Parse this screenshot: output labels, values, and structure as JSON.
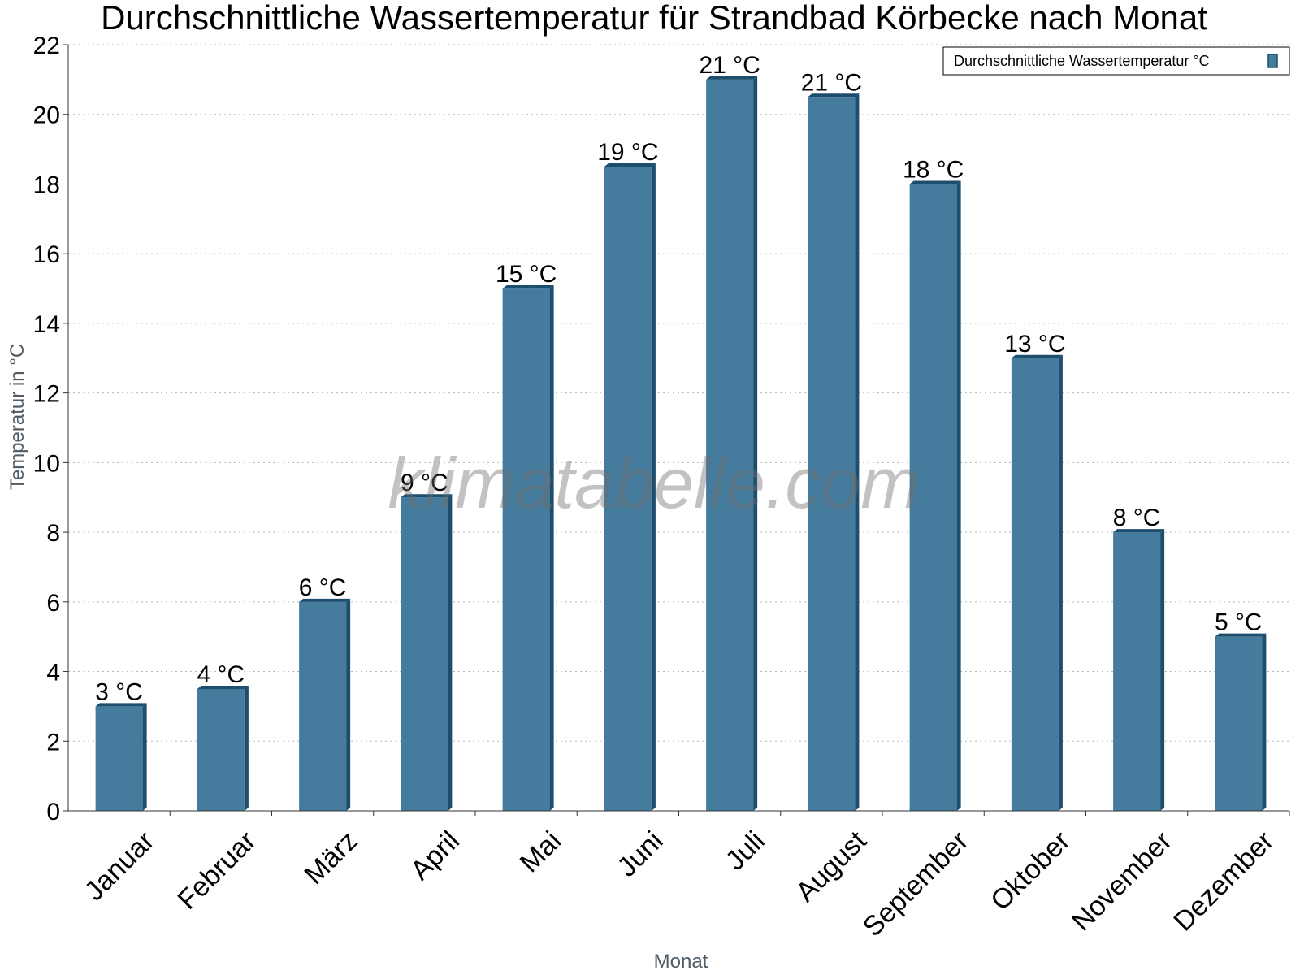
{
  "title": "Durchschnittliche Wassertemperatur für Strandbad Körbecke nach Monat",
  "watermark": "klimatabelle.com",
  "colors": {
    "bar_front": "#457b9d",
    "bar_side": "#1d4e6e",
    "bar_top": "#1d4e6e",
    "grid": "#b8b8b8",
    "axis": "#333333"
  },
  "chart_data": {
    "type": "bar",
    "title": "Durchschnittliche Wassertemperatur für Strandbad Körbecke nach Monat",
    "xlabel": "Monat",
    "ylabel": "Temperatur in °C",
    "ylim": [
      0,
      22
    ],
    "yticks": [
      0,
      2,
      4,
      6,
      8,
      10,
      12,
      14,
      16,
      18,
      20,
      22
    ],
    "grid": true,
    "legend_position": "top-right",
    "categories": [
      "Januar",
      "Februar",
      "März",
      "April",
      "Mai",
      "Juni",
      "Juli",
      "August",
      "September",
      "Oktober",
      "November",
      "Dezember"
    ],
    "series": [
      {
        "name": "Durchschnittliche Wassertemperatur °C",
        "values": [
          3,
          3.5,
          6,
          9,
          15,
          18.5,
          21,
          20.5,
          18,
          13,
          8,
          5
        ],
        "labels": [
          "3 °C",
          "4 °C",
          "6 °C",
          "9 °C",
          "15 °C",
          "19 °C",
          "21 °C",
          "21 °C",
          "18 °C",
          "13 °C",
          "8 °C",
          "5 °C"
        ]
      }
    ]
  }
}
